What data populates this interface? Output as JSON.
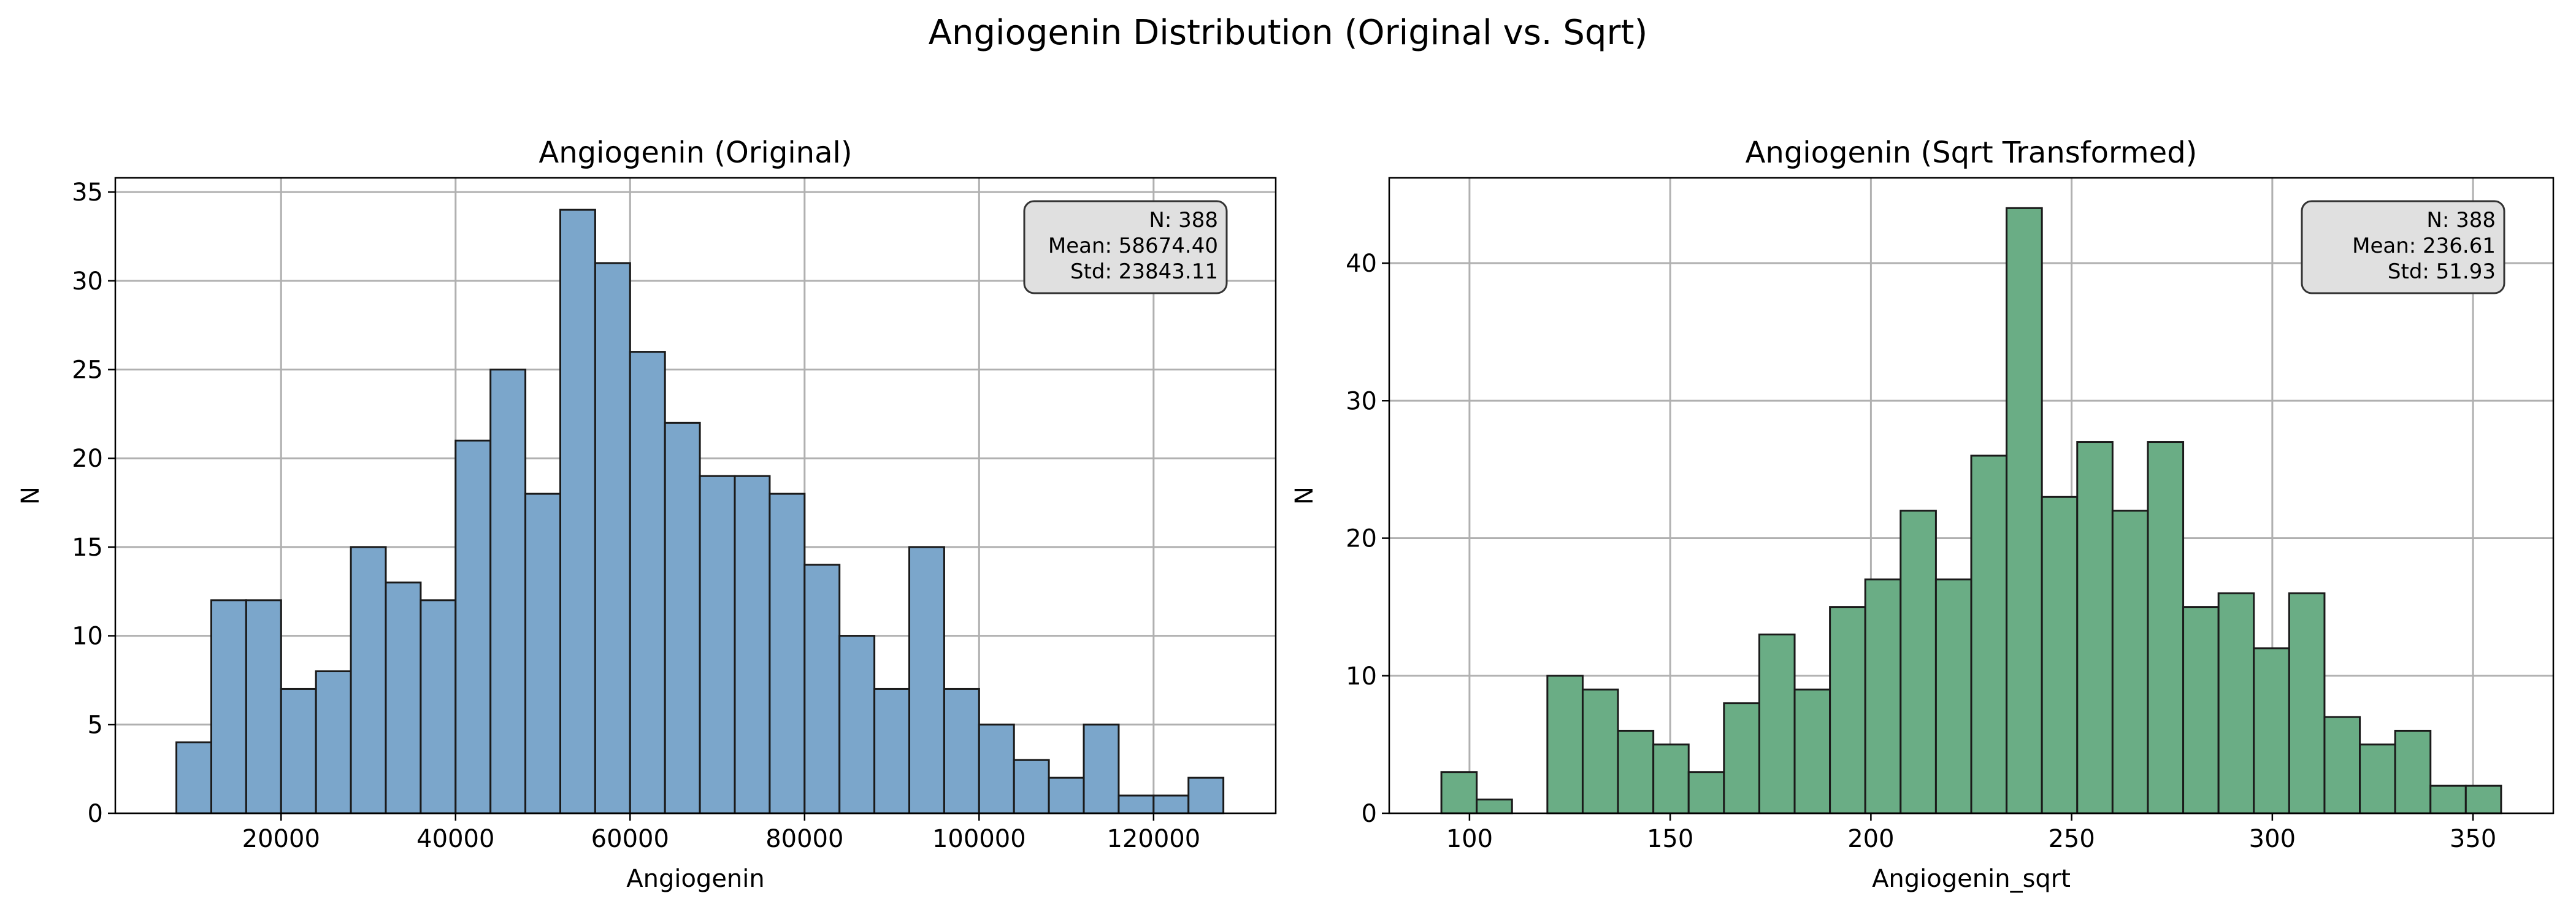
{
  "figure_title": "Angiogenin Distribution (Original vs. Sqrt)",
  "chart_data": [
    {
      "type": "bar",
      "title": "Angiogenin (Original)",
      "xlabel": "Angiogenin",
      "ylabel": "N",
      "xlim": [
        1000,
        134000
      ],
      "ylim": [
        0,
        35.8
      ],
      "xticks": [
        20000,
        40000,
        60000,
        80000,
        100000,
        120000
      ],
      "xtick_labels": [
        "20000",
        "40000",
        "60000",
        "80000",
        "100000",
        "120000"
      ],
      "yticks": [
        0,
        5,
        10,
        15,
        20,
        25,
        30,
        35
      ],
      "ytick_labels": [
        "0",
        "5",
        "10",
        "15",
        "20",
        "25",
        "30",
        "35"
      ],
      "bin_start": 8000,
      "bin_width": 4000,
      "values": [
        4,
        12,
        12,
        7,
        8,
        15,
        13,
        12,
        21,
        25,
        18,
        34,
        31,
        26,
        22,
        19,
        19,
        18,
        14,
        10,
        7,
        15,
        7,
        5,
        3,
        2,
        5,
        1,
        1,
        2
      ],
      "color": "#7ba6cb",
      "grid": true,
      "stats": [
        "N: 388",
        "Mean: 58674.40",
        "Std: 23843.11"
      ],
      "stats_position": "top-right"
    },
    {
      "type": "bar",
      "title": "Angiogenin (Sqrt Transformed)",
      "xlabel": "Angiogenin_sqrt",
      "ylabel": "N",
      "xlim": [
        80,
        370
      ],
      "ylim": [
        0,
        46.2
      ],
      "xticks": [
        100,
        150,
        200,
        250,
        300,
        350
      ],
      "xtick_labels": [
        "100",
        "150",
        "200",
        "250",
        "300",
        "350"
      ],
      "yticks": [
        0,
        10,
        20,
        30,
        40
      ],
      "ytick_labels": [
        "0",
        "10",
        "20",
        "30",
        "40"
      ],
      "bin_start": 93,
      "bin_width": 8.8,
      "values": [
        3,
        1,
        0,
        10,
        9,
        6,
        5,
        3,
        8,
        13,
        9,
        15,
        17,
        22,
        17,
        26,
        44,
        23,
        27,
        22,
        27,
        15,
        16,
        12,
        16,
        7,
        5,
        6,
        2,
        2
      ],
      "color": "#6aad85",
      "grid": true,
      "stats": [
        "N: 388",
        "Mean: 236.61",
        "Std: 51.93"
      ],
      "stats_position": "top-right"
    }
  ]
}
